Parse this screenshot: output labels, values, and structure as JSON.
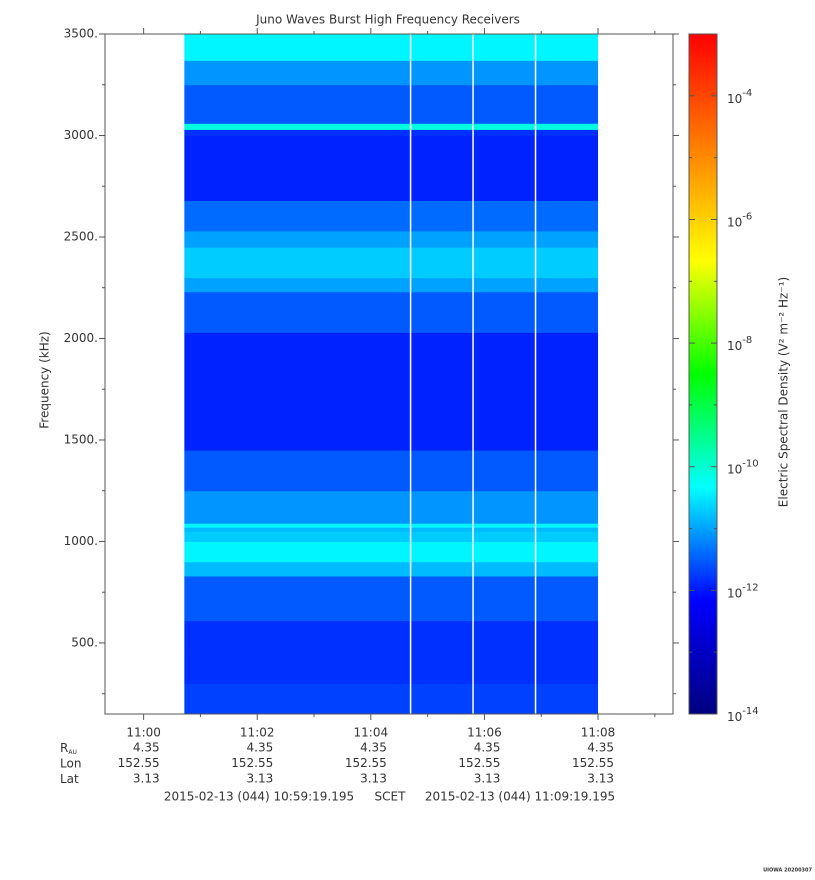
{
  "chart_data": {
    "type": "spectrogram",
    "title": "Juno Waves Burst High Frequency Receivers",
    "ylabel": "Frequency (kHz)",
    "zlabel": "Electric Spectral Density (V² m⁻² Hz⁻¹)",
    "xlim": [
      "2015-02-13 10:59:19.195",
      "2015-02-13 11:09:19.195"
    ],
    "xticks": [
      {
        "value": "2015-02-13 11:00",
        "label": "11:00"
      },
      {
        "value": "2015-02-13 11:02",
        "label": "11:02"
      },
      {
        "value": "2015-02-13 11:04",
        "label": "11:04"
      },
      {
        "value": "2015-02-13 11:06",
        "label": "11:06"
      },
      {
        "value": "2015-02-13 11:08",
        "label": "11:08"
      }
    ],
    "xminorticks": [
      "2015-02-13 11:01",
      "2015-02-13 11:03",
      "2015-02-13 11:05",
      "2015-02-13 11:07",
      "2015-02-13 11:09"
    ],
    "ylim": [
      150,
      3500
    ],
    "yticks": [
      {
        "value": 500,
        "label": "500."
      },
      {
        "value": 1000,
        "label": "1000."
      },
      {
        "value": 1500,
        "label": "1500."
      },
      {
        "value": 2000,
        "label": "2000."
      },
      {
        "value": 2500,
        "label": "2500."
      },
      {
        "value": 3000,
        "label": "3000."
      },
      {
        "value": 3500,
        "label": "3500."
      }
    ],
    "yminorticks": [
      250,
      750,
      1250,
      1750,
      2250,
      2750,
      3250
    ],
    "zlim": [
      1e-14,
      0.001
    ],
    "zscale": "log",
    "zticks": [
      {
        "value": 0.0001,
        "label": "10",
        "exponent": "-4"
      },
      {
        "value": 1e-06,
        "label": "10",
        "exponent": "-6"
      },
      {
        "value": 1e-08,
        "label": "10",
        "exponent": "-8"
      },
      {
        "value": 1e-10,
        "label": "10",
        "exponent": "-10"
      },
      {
        "value": 1e-12,
        "label": "10",
        "exponent": "-12"
      },
      {
        "value": 1e-14,
        "label": "10",
        "exponent": "-14"
      }
    ],
    "zminorticks": [
      1e-05,
      1e-07,
      1e-09,
      1e-11,
      1e-13
    ],
    "colormap": [
      "#00007f",
      "#0000ff",
      "#00ffff",
      "#00ff00",
      "#ffff00",
      "#ff7f00",
      "#ff0000"
    ],
    "data_start": "2015-02-13 11:00:43",
    "data_end": "2015-02-13 11:08:00",
    "gaps": [
      "2015-02-13 11:04:42",
      "2015-02-13 11:05:48",
      "2015-02-13 11:06:54"
    ],
    "frequency_bins": [
      150,
      300,
      450,
      610,
      830,
      900,
      1000,
      1050,
      1070,
      1090,
      1250,
      1450,
      2030,
      2230,
      2300,
      2450,
      2530,
      2680,
      3000,
      3030,
      3060,
      3250,
      3370,
      3500
    ],
    "z": [
      2e-12,
      1.5e-12,
      1.5e-12,
      3e-12,
      1.5e-11,
      4e-11,
      2e-11,
      1.5e-11,
      4e-11,
      8e-12,
      3e-12,
      1.2e-12,
      3e-12,
      1e-11,
      2e-11,
      1e-11,
      4e-12,
      1.2e-12,
      1.5e-12,
      8e-11,
      3e-12,
      8e-12,
      4e-11
    ],
    "ephemeris": [
      {
        "label": "R",
        "sub": "AU",
        "values": [
          4.35,
          4.35,
          4.35,
          4.35,
          4.35
        ]
      },
      {
        "label": "Lon",
        "values": [
          152.55,
          152.55,
          152.55,
          152.55,
          152.55
        ]
      },
      {
        "label": "Lat",
        "values": [
          3.13,
          3.13,
          3.13,
          3.13,
          3.13
        ]
      }
    ],
    "footer": {
      "start": "2015-02-13 (044) 10:59:19.195",
      "center": "SCET",
      "end": "2015-02-13 (044) 11:09:19.195"
    },
    "note": "UIOWA 20200307"
  }
}
